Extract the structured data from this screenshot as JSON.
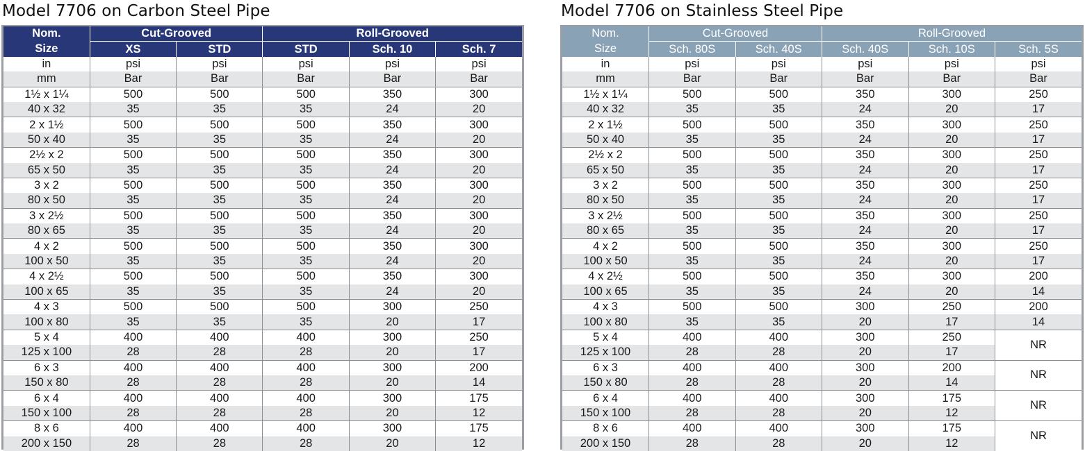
{
  "tables": [
    {
      "title": "Model 7706 on Carbon Steel Pipe",
      "header": {
        "nom": "Nom.",
        "size": "Size",
        "cut_group": "Cut-Grooved",
        "roll_group": "Roll-Grooved",
        "columns": [
          "XS",
          "STD",
          "STD",
          "Sch. 10",
          "Sch. 7"
        ]
      },
      "unit_rows": [
        {
          "label": "in",
          "values": [
            "psi",
            "psi",
            "psi",
            "psi",
            "psi"
          ]
        },
        {
          "label": "mm",
          "values": [
            "Bar",
            "Bar",
            "Bar",
            "Bar",
            "Bar"
          ]
        }
      ],
      "rows": [
        {
          "in": "1½ x 1¼",
          "mm": "40 x 32",
          "psi": [
            "500",
            "500",
            "500",
            "350",
            "300"
          ],
          "bar": [
            "35",
            "35",
            "35",
            "24",
            "20"
          ]
        },
        {
          "in": "2 x 1½",
          "mm": "50 x 40",
          "psi": [
            "500",
            "500",
            "500",
            "350",
            "300"
          ],
          "bar": [
            "35",
            "35",
            "35",
            "24",
            "20"
          ]
        },
        {
          "in": "2½ x 2",
          "mm": "65 x 50",
          "psi": [
            "500",
            "500",
            "500",
            "350",
            "300"
          ],
          "bar": [
            "35",
            "35",
            "35",
            "24",
            "20"
          ]
        },
        {
          "in": "3 x 2",
          "mm": "80 x 50",
          "psi": [
            "500",
            "500",
            "500",
            "350",
            "300"
          ],
          "bar": [
            "35",
            "35",
            "35",
            "24",
            "20"
          ]
        },
        {
          "in": "3 x 2½",
          "mm": "80 x 65",
          "psi": [
            "500",
            "500",
            "500",
            "350",
            "300"
          ],
          "bar": [
            "35",
            "35",
            "35",
            "24",
            "20"
          ]
        },
        {
          "in": "4 x 2",
          "mm": "100 x 50",
          "psi": [
            "500",
            "500",
            "500",
            "350",
            "300"
          ],
          "bar": [
            "35",
            "35",
            "35",
            "24",
            "20"
          ]
        },
        {
          "in": "4 x 2½",
          "mm": "100 x 65",
          "psi": [
            "500",
            "500",
            "500",
            "350",
            "300"
          ],
          "bar": [
            "35",
            "35",
            "35",
            "24",
            "20"
          ]
        },
        {
          "in": "4 x 3",
          "mm": "100 x 80",
          "psi": [
            "500",
            "500",
            "500",
            "300",
            "250"
          ],
          "bar": [
            "35",
            "35",
            "35",
            "20",
            "17"
          ]
        },
        {
          "in": "5 x 4",
          "mm": "125 x 100",
          "psi": [
            "400",
            "400",
            "400",
            "300",
            "250"
          ],
          "bar": [
            "28",
            "28",
            "28",
            "20",
            "17"
          ]
        },
        {
          "in": "6 x 3",
          "mm": "150 x 80",
          "psi": [
            "400",
            "400",
            "400",
            "300",
            "200"
          ],
          "bar": [
            "28",
            "28",
            "28",
            "20",
            "14"
          ]
        },
        {
          "in": "6 x 4",
          "mm": "150 x 100",
          "psi": [
            "400",
            "400",
            "400",
            "300",
            "175"
          ],
          "bar": [
            "28",
            "28",
            "28",
            "20",
            "12"
          ]
        },
        {
          "in": "8 x 6",
          "mm": "200 x 150",
          "psi": [
            "400",
            "400",
            "400",
            "300",
            "175"
          ],
          "bar": [
            "28",
            "28",
            "28",
            "20",
            "12"
          ]
        }
      ]
    },
    {
      "title": "Model 7706 on Stainless Steel Pipe",
      "header": {
        "nom": "Nom.",
        "size": "Size",
        "cut_group": "Cut-Grooved",
        "roll_group": "Roll-Grooved",
        "columns": [
          "Sch. 80S",
          "Sch. 40S",
          "Sch. 40S",
          "Sch. 10S",
          "Sch. 5S"
        ]
      },
      "unit_rows": [
        {
          "label": "in",
          "values": [
            "psi",
            "psi",
            "psi",
            "psi",
            "psi"
          ]
        },
        {
          "label": "mm",
          "values": [
            "Bar",
            "Bar",
            "Bar",
            "Bar",
            "Bar"
          ]
        }
      ],
      "rows": [
        {
          "in": "1½ x 1¼",
          "mm": "40 x 32",
          "psi": [
            "500",
            "500",
            "350",
            "300",
            "250"
          ],
          "bar": [
            "35",
            "35",
            "24",
            "20",
            "17"
          ]
        },
        {
          "in": "2 x 1½",
          "mm": "50 x 40",
          "psi": [
            "500",
            "500",
            "350",
            "300",
            "250"
          ],
          "bar": [
            "35",
            "35",
            "24",
            "20",
            "17"
          ]
        },
        {
          "in": "2½ x 2",
          "mm": "65 x 50",
          "psi": [
            "500",
            "500",
            "350",
            "300",
            "250"
          ],
          "bar": [
            "35",
            "35",
            "24",
            "20",
            "17"
          ]
        },
        {
          "in": "3 x 2",
          "mm": "80 x 50",
          "psi": [
            "500",
            "500",
            "350",
            "300",
            "250"
          ],
          "bar": [
            "35",
            "35",
            "24",
            "20",
            "17"
          ]
        },
        {
          "in": "3 x 2½",
          "mm": "80 x 65",
          "psi": [
            "500",
            "500",
            "350",
            "300",
            "250"
          ],
          "bar": [
            "35",
            "35",
            "24",
            "20",
            "17"
          ]
        },
        {
          "in": "4 x 2",
          "mm": "100 x 50",
          "psi": [
            "500",
            "500",
            "350",
            "300",
            "250"
          ],
          "bar": [
            "35",
            "35",
            "24",
            "20",
            "17"
          ]
        },
        {
          "in": "4 x 2½",
          "mm": "100 x 65",
          "psi": [
            "500",
            "500",
            "350",
            "300",
            "200"
          ],
          "bar": [
            "35",
            "35",
            "24",
            "20",
            "14"
          ]
        },
        {
          "in": "4 x 3",
          "mm": "100 x 80",
          "psi": [
            "500",
            "500",
            "300",
            "250",
            "200"
          ],
          "bar": [
            "35",
            "35",
            "20",
            "17",
            "14"
          ]
        },
        {
          "in": "5 x 4",
          "mm": "125 x 100",
          "psi": [
            "400",
            "400",
            "300",
            "250",
            "NR"
          ],
          "bar": [
            "28",
            "28",
            "20",
            "17",
            ""
          ]
        },
        {
          "in": "6 x 3",
          "mm": "150 x 80",
          "psi": [
            "400",
            "400",
            "300",
            "200",
            "NR"
          ],
          "bar": [
            "28",
            "28",
            "20",
            "14",
            ""
          ]
        },
        {
          "in": "6 x 4",
          "mm": "150 x 100",
          "psi": [
            "400",
            "400",
            "300",
            "175",
            "NR"
          ],
          "bar": [
            "28",
            "28",
            "20",
            "12",
            ""
          ]
        },
        {
          "in": "8 x 6",
          "mm": "200 x 150",
          "psi": [
            "400",
            "400",
            "300",
            "175",
            "NR"
          ],
          "bar": [
            "28",
            "28",
            "20",
            "12",
            ""
          ]
        }
      ],
      "merged_value": "NR"
    }
  ]
}
